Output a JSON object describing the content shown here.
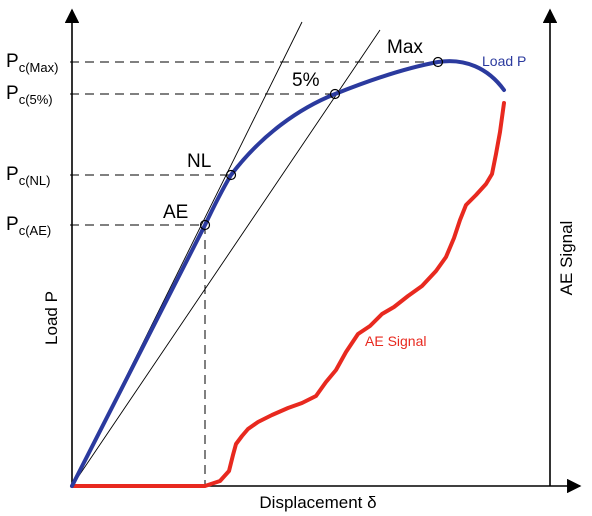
{
  "colors": {
    "load_curve": "#2b3a9e",
    "ae_curve": "#e8291f",
    "axes": "#000000"
  },
  "labels": {
    "p_max": {
      "main": "P",
      "sub": "c(Max)"
    },
    "p_5": {
      "main": "P",
      "sub": "c(5%)"
    },
    "p_nl": {
      "main": "P",
      "sub": "c(NL)"
    },
    "p_ae": {
      "main": "P",
      "sub": "c(AE)"
    },
    "marker_max": "Max",
    "marker_5": "5%",
    "marker_nl": "NL",
    "marker_ae": "AE",
    "load_p_curve": "Load P",
    "ae_signal_curve": "AE Signal",
    "y_left_title": "Load P",
    "y_right_title": "AE Signal",
    "x_title": "Displacement δ"
  }
}
